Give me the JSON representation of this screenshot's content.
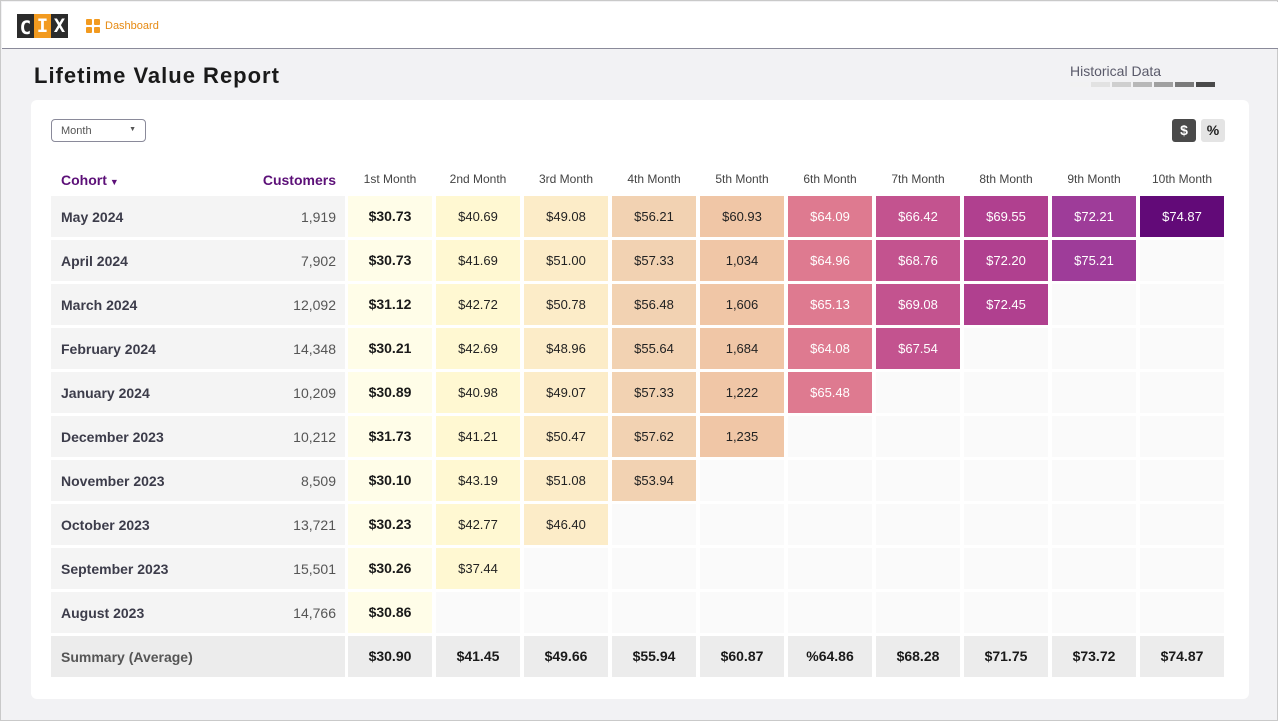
{
  "app": {
    "logo_letters": [
      "C",
      "I",
      "X"
    ],
    "nav_dashboard": "Dashboard"
  },
  "page": {
    "title": "Lifetime Value Report",
    "historical_label": "Historical Data",
    "historical_swatches": [
      "#f2f2f2",
      "#e2e2e2",
      "#cfcfcf",
      "#b8b8b8",
      "#a0a0a0",
      "#7a7a7a",
      "#4a4a4a"
    ]
  },
  "controls": {
    "period_select_value": "Month",
    "toggle_dollar": "$",
    "toggle_percent": "%",
    "active_toggle": "$"
  },
  "table": {
    "cohort_header": "Cohort",
    "customers_header": "Customers",
    "month_headers": [
      "1st Month",
      "2nd Month",
      "3rd Month",
      "4th Month",
      "5th Month",
      "6th Month",
      "7th Month",
      "8th Month",
      "9th Month",
      "10th Month"
    ],
    "rows": [
      {
        "cohort": "May 2024",
        "customers": "1,919",
        "values": [
          "$30.73",
          "$40.69",
          "$49.08",
          "$56.21",
          "$60.93",
          "$64.09",
          "$66.42",
          "$69.55",
          "$72.21",
          "$74.87"
        ]
      },
      {
        "cohort": "April 2024",
        "customers": "7,902",
        "values": [
          "$30.73",
          "$41.69",
          "$51.00",
          "$57.33",
          "1,034",
          "$64.96",
          "$68.76",
          "$72.20",
          "$75.21"
        ]
      },
      {
        "cohort": "March  2024",
        "customers": "12,092",
        "values": [
          "$31.12",
          "$42.72",
          "$50.78",
          "$56.48",
          "1,606",
          "$65.13",
          "$69.08",
          "$72.45"
        ]
      },
      {
        "cohort": "February 2024",
        "customers": "14,348",
        "values": [
          "$30.21",
          "$42.69",
          "$48.96",
          "$55.64",
          "1,684",
          "$64.08",
          "$67.54"
        ]
      },
      {
        "cohort": "January 2024",
        "customers": "10,209",
        "values": [
          "$30.89",
          "$40.98",
          "$49.07",
          "$57.33",
          "1,222",
          "$65.48"
        ]
      },
      {
        "cohort": "December 2023",
        "customers": "10,212",
        "values": [
          "$31.73",
          "$41.21",
          "$50.47",
          "$57.62",
          "1,235"
        ]
      },
      {
        "cohort": "November 2023",
        "customers": "8,509",
        "values": [
          "$30.10",
          "$43.19",
          "$51.08",
          "$53.94"
        ]
      },
      {
        "cohort": "October 2023",
        "customers": "13,721",
        "values": [
          "$30.23",
          "$42.77",
          "$46.40"
        ]
      },
      {
        "cohort": "September 2023",
        "customers": "15,501",
        "values": [
          "$30.26",
          "$37.44"
        ]
      },
      {
        "cohort": "August 2023",
        "customers": "14,766",
        "values": [
          "$30.86"
        ]
      }
    ],
    "summary_label": "Summary (Average)",
    "summary_values": [
      "$30.90",
      "$41.45",
      "$49.66",
      "$55.94",
      "$60.87",
      "%64.86",
      "$68.28",
      "$71.75",
      "$73.72",
      "$74.87"
    ]
  },
  "colors": {
    "heat": [
      "#fffde8",
      "#fff8d2",
      "#fcecc8",
      "#f2d2b2",
      "#f0c6a6",
      "#de7a90",
      "#c3538f",
      "#b0408f",
      "#9e3c99",
      "#620a78"
    ],
    "light_text_from_month": 6,
    "accent": "#f29a1f",
    "brand_purple": "#5c1078",
    "empty_cell": "#fafafa"
  }
}
